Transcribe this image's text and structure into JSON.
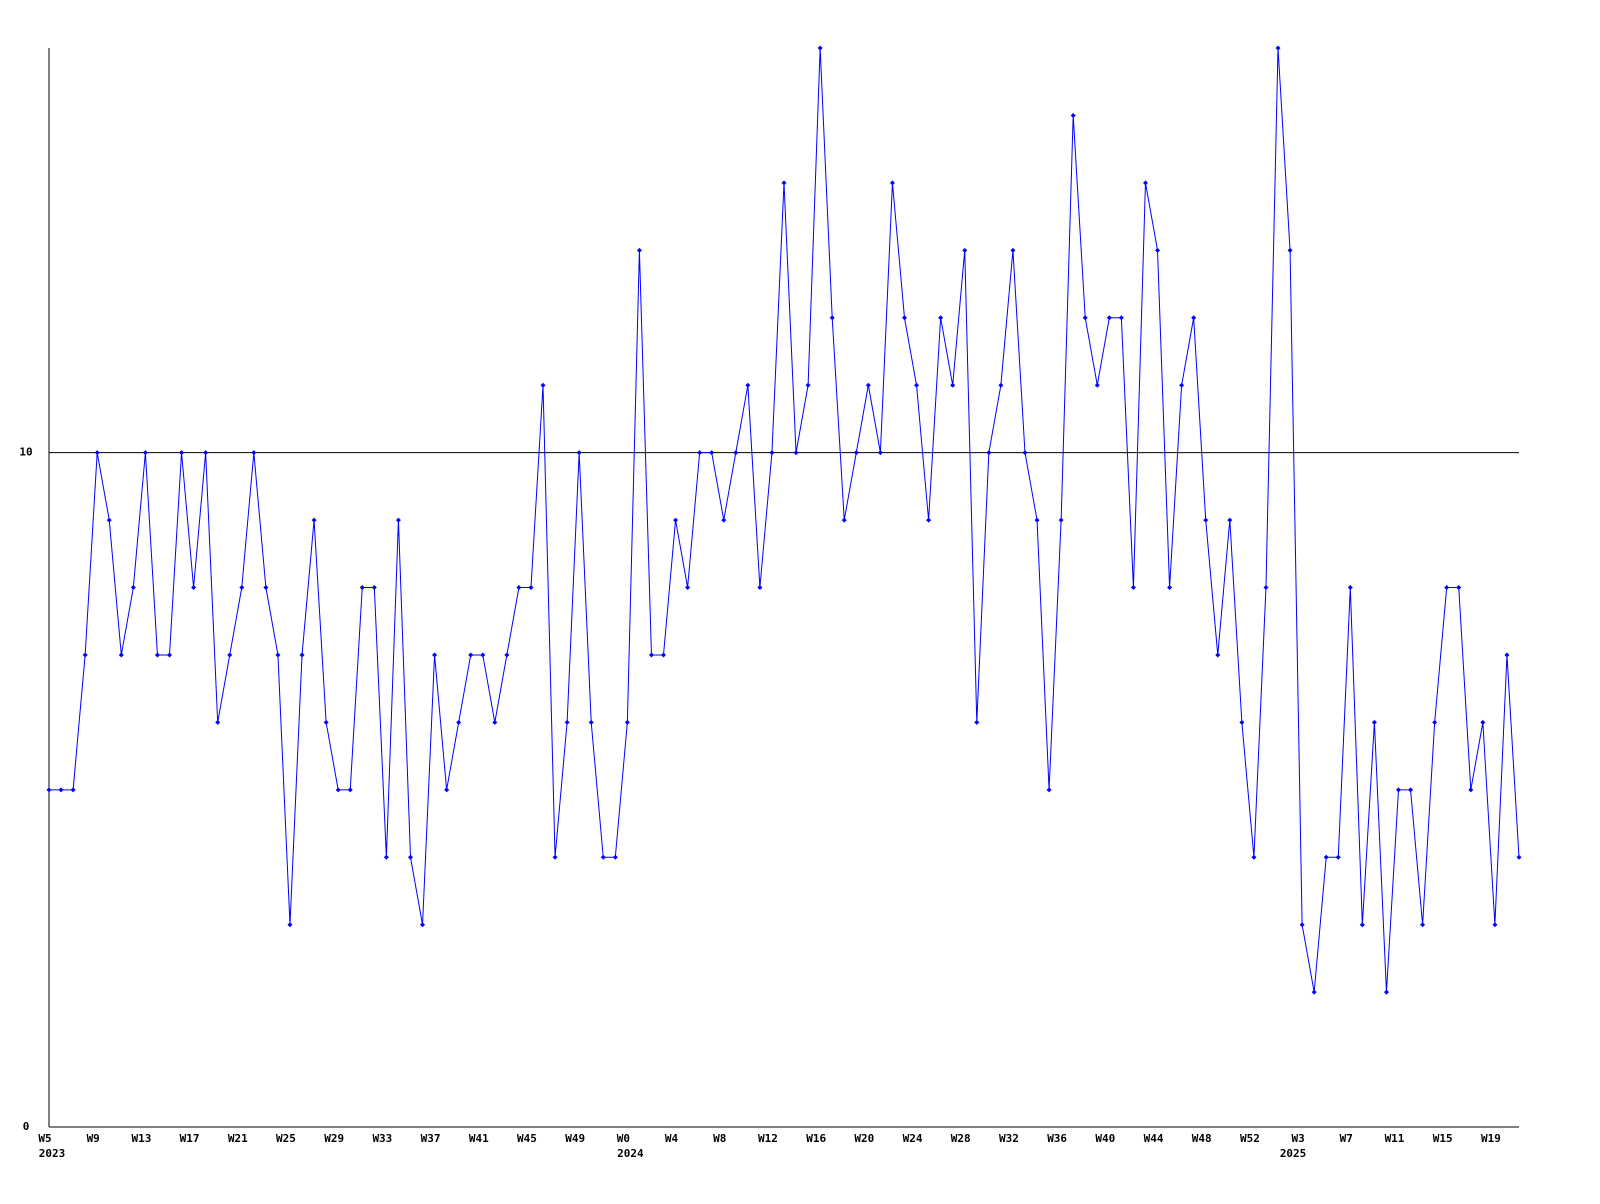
{
  "chart_data": {
    "type": "line",
    "color": "#0000ff",
    "categories": [
      "W5",
      null,
      null,
      null,
      "W9",
      null,
      null,
      null,
      "W13",
      null,
      null,
      null,
      "W17",
      null,
      null,
      null,
      "W21",
      null,
      null,
      null,
      "W25",
      null,
      null,
      null,
      "W29",
      null,
      null,
      null,
      "W33",
      null,
      null,
      null,
      "W37",
      null,
      null,
      null,
      "W41",
      null,
      null,
      null,
      "W45",
      null,
      null,
      null,
      "W49",
      null,
      null,
      null,
      "W0",
      null,
      null,
      null,
      "W4",
      null,
      null,
      null,
      "W8",
      null,
      null,
      null,
      "W12",
      null,
      null,
      null,
      "W16",
      null,
      null,
      null,
      "W20",
      null,
      null,
      null,
      "W24",
      null,
      null,
      null,
      "W28",
      null,
      null,
      null,
      "W32",
      null,
      null,
      null,
      "W36",
      null,
      null,
      null,
      "W40",
      null,
      null,
      null,
      "W44",
      null,
      null,
      null,
      "W48",
      null,
      null,
      null,
      "W52",
      null,
      null,
      null,
      "W3",
      null,
      null,
      null,
      "W7",
      null,
      null,
      null,
      "W11",
      null,
      null,
      null,
      "W15",
      null,
      null,
      null,
      "W19",
      null,
      null
    ],
    "year_labels": [
      "2023",
      null,
      null,
      null,
      null,
      null,
      null,
      null,
      null,
      null,
      null,
      null,
      null,
      null,
      null,
      null,
      null,
      null,
      null,
      null,
      null,
      null,
      null,
      null,
      null,
      null,
      null,
      null,
      null,
      null,
      null,
      null,
      null,
      null,
      null,
      null,
      null,
      null,
      null,
      null,
      null,
      null,
      null,
      null,
      null,
      null,
      null,
      null,
      "2024",
      null,
      null,
      null,
      null,
      null,
      null,
      null,
      null,
      null,
      null,
      null,
      null,
      null,
      null,
      null,
      null,
      null,
      null,
      null,
      null,
      null,
      null,
      null,
      null,
      null,
      null,
      null,
      null,
      null,
      null,
      null,
      null,
      null,
      null,
      null,
      null,
      null,
      null,
      null,
      null,
      null,
      null,
      null,
      null,
      null,
      null,
      null,
      null,
      null,
      null,
      null,
      null,
      null,
      null,
      "2025",
      null,
      null,
      null,
      null,
      null,
      null,
      null,
      null,
      null,
      null,
      null,
      null,
      null,
      null,
      null,
      null,
      null,
      null,
      null,
      null,
      null
    ],
    "values": [
      5,
      5,
      5,
      7,
      10,
      9,
      7,
      8,
      10,
      7,
      7,
      10,
      8,
      10,
      6,
      7,
      8,
      10,
      8,
      7,
      3,
      7,
      9,
      6,
      5,
      5,
      8,
      8,
      4,
      9,
      4,
      3,
      7,
      5,
      6,
      7,
      7,
      6,
      7,
      8,
      8,
      11,
      4,
      6,
      10,
      6,
      4,
      4,
      6,
      13,
      7,
      7,
      9,
      8,
      10,
      10,
      9,
      10,
      11,
      8,
      10,
      14,
      10,
      11,
      16,
      12,
      9,
      10,
      11,
      10,
      14,
      12,
      11,
      9,
      12,
      11,
      13,
      6,
      10,
      11,
      13,
      10,
      9,
      5,
      9,
      15,
      12,
      11,
      12,
      12,
      8,
      14,
      13,
      8,
      11,
      12,
      9,
      7,
      9,
      6,
      4,
      8,
      16,
      13,
      3,
      2,
      4,
      4,
      8,
      3,
      6,
      2,
      5,
      5,
      3,
      6,
      8,
      8,
      5,
      6,
      3,
      7,
      4
    ],
    "ylim": [
      0,
      16
    ],
    "yticks": [
      0,
      10
    ],
    "grid": true
  }
}
